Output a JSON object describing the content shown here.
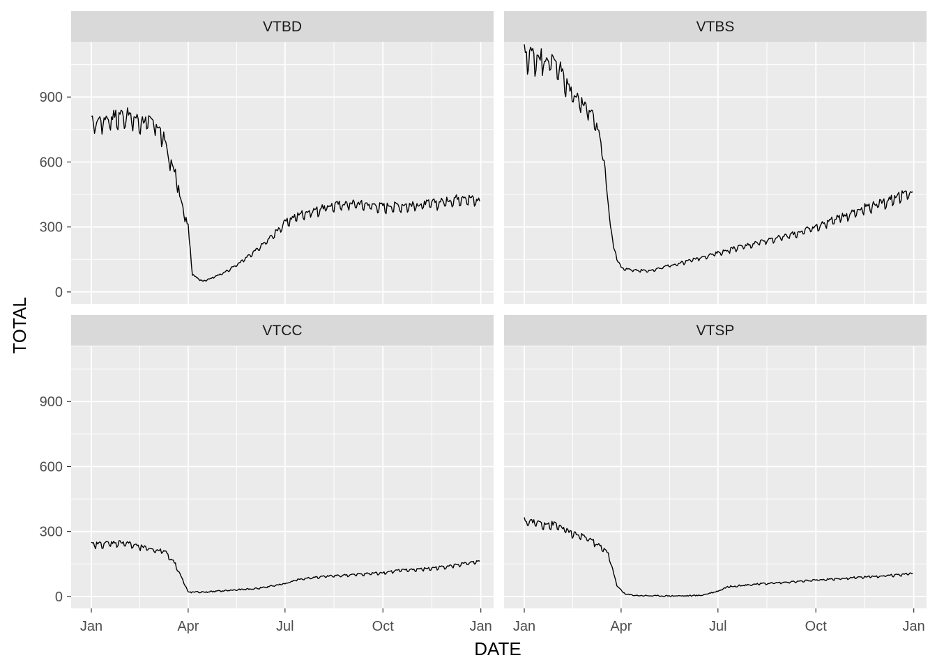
{
  "chart_data": {
    "type": "line",
    "layout": "facet-grid-2x2",
    "xlabel": "DATE",
    "ylabel": "TOTAL",
    "x_ticks": [
      "Jan",
      "Apr",
      "Jul",
      "Oct",
      "Jan"
    ],
    "x_tick_dates": [
      "2020-01-01",
      "2020-04-01",
      "2020-07-01",
      "2020-10-01",
      "2021-01-01"
    ],
    "xlim": [
      "2019-12-13",
      "2021-01-13"
    ],
    "y_ticks": [
      0,
      300,
      600,
      900
    ],
    "ylim": [
      -55,
      1155
    ],
    "grid": true,
    "panel_background": "#ebebeb",
    "strip_background": "#d9d9d9",
    "line_color": "#000000",
    "facets": [
      {
        "name": "VTBD",
        "x": [
          "2020-01-01",
          "2020-01-15",
          "2020-02-01",
          "2020-02-15",
          "2020-03-01",
          "2020-03-10",
          "2020-03-15",
          "2020-03-20",
          "2020-03-25",
          "2020-04-01",
          "2020-04-05",
          "2020-04-15",
          "2020-05-01",
          "2020-05-15",
          "2020-06-01",
          "2020-06-15",
          "2020-07-01",
          "2020-07-15",
          "2020-08-01",
          "2020-08-15",
          "2020-09-01",
          "2020-09-15",
          "2020-10-01",
          "2020-10-15",
          "2020-11-01",
          "2020-11-15",
          "2020-12-01",
          "2020-12-15",
          "2020-12-31"
        ],
        "y": [
          780,
          800,
          820,
          790,
          780,
          700,
          600,
          550,
          420,
          300,
          80,
          50,
          80,
          120,
          180,
          240,
          320,
          360,
          380,
          400,
          410,
          405,
          395,
          400,
          400,
          410,
          420,
          440,
          420
        ]
      },
      {
        "name": "VTBS",
        "x": [
          "2020-01-01",
          "2020-01-20",
          "2020-02-01",
          "2020-02-10",
          "2020-02-20",
          "2020-03-01",
          "2020-03-10",
          "2020-03-15",
          "2020-03-20",
          "2020-03-25",
          "2020-04-01",
          "2020-04-15",
          "2020-05-01",
          "2020-05-15",
          "2020-06-01",
          "2020-06-15",
          "2020-07-01",
          "2020-07-15",
          "2020-08-01",
          "2020-08-15",
          "2020-09-01",
          "2020-09-15",
          "2020-10-01",
          "2020-10-15",
          "2020-11-01",
          "2020-11-15",
          "2020-12-01",
          "2020-12-15",
          "2020-12-31"
        ],
        "y": [
          1100,
          1080,
          1060,
          950,
          900,
          850,
          750,
          650,
          400,
          200,
          110,
          100,
          100,
          120,
          140,
          160,
          180,
          200,
          220,
          240,
          255,
          275,
          300,
          330,
          360,
          390,
          410,
          440,
          460
        ]
      },
      {
        "name": "VTCC",
        "x": [
          "2020-01-01",
          "2020-01-15",
          "2020-02-01",
          "2020-02-15",
          "2020-03-01",
          "2020-03-10",
          "2020-03-20",
          "2020-04-01",
          "2020-04-15",
          "2020-05-01",
          "2020-05-15",
          "2020-06-01",
          "2020-06-15",
          "2020-07-01",
          "2020-07-15",
          "2020-08-01",
          "2020-08-15",
          "2020-09-01",
          "2020-09-15",
          "2020-10-01",
          "2020-10-15",
          "2020-11-01",
          "2020-11-15",
          "2020-12-01",
          "2020-12-15",
          "2020-12-31"
        ],
        "y": [
          240,
          245,
          250,
          230,
          215,
          210,
          150,
          20,
          20,
          25,
          30,
          35,
          45,
          60,
          80,
          90,
          95,
          100,
          105,
          110,
          120,
          125,
          130,
          140,
          150,
          160
        ]
      },
      {
        "name": "VTSP",
        "x": [
          "2020-01-01",
          "2020-01-15",
          "2020-02-01",
          "2020-02-15",
          "2020-03-01",
          "2020-03-10",
          "2020-03-20",
          "2020-03-28",
          "2020-04-05",
          "2020-04-15",
          "2020-05-01",
          "2020-05-15",
          "2020-06-01",
          "2020-06-15",
          "2020-07-01",
          "2020-07-10",
          "2020-08-01",
          "2020-08-15",
          "2020-09-01",
          "2020-09-15",
          "2020-10-01",
          "2020-10-15",
          "2020-11-01",
          "2020-11-15",
          "2020-12-01",
          "2020-12-15",
          "2020-12-31"
        ],
        "y": [
          350,
          340,
          330,
          290,
          270,
          240,
          200,
          50,
          10,
          5,
          3,
          3,
          3,
          5,
          25,
          45,
          55,
          60,
          65,
          70,
          75,
          80,
          85,
          90,
          95,
          100,
          105
        ]
      }
    ]
  }
}
